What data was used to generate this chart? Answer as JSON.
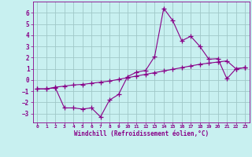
{
  "xlabel": "Windchill (Refroidissement éolien,°C)",
  "bg_color": "#c8f0f0",
  "grid_color": "#a0c8c8",
  "line_color": "#880088",
  "x_values": [
    0,
    1,
    2,
    3,
    4,
    5,
    6,
    7,
    8,
    9,
    10,
    11,
    12,
    13,
    14,
    15,
    16,
    17,
    18,
    19,
    20,
    21,
    22,
    23
  ],
  "line1_y": [
    -0.8,
    -0.8,
    -0.7,
    -2.5,
    -2.5,
    -2.6,
    -2.5,
    -3.3,
    -1.8,
    -1.3,
    0.3,
    0.7,
    0.85,
    2.1,
    6.4,
    5.3,
    3.5,
    3.9,
    3.0,
    1.85,
    1.9,
    0.1,
    1.0,
    1.1
  ],
  "line2_y": [
    -0.8,
    -0.8,
    -0.65,
    -0.55,
    -0.45,
    -0.4,
    -0.3,
    -0.2,
    -0.1,
    0.05,
    0.2,
    0.35,
    0.5,
    0.65,
    0.8,
    0.95,
    1.1,
    1.25,
    1.4,
    1.5,
    1.6,
    1.7,
    1.0,
    1.1
  ],
  "xlim": [
    -0.5,
    23.5
  ],
  "ylim": [
    -3.8,
    7.0
  ],
  "yticks": [
    -3,
    -2,
    -1,
    0,
    1,
    2,
    3,
    4,
    5,
    6
  ],
  "xticks": [
    0,
    1,
    2,
    3,
    4,
    5,
    6,
    7,
    8,
    9,
    10,
    11,
    12,
    13,
    14,
    15,
    16,
    17,
    18,
    19,
    20,
    21,
    22,
    23
  ],
  "marker": "+",
  "markersize": 4,
  "linewidth": 0.8
}
